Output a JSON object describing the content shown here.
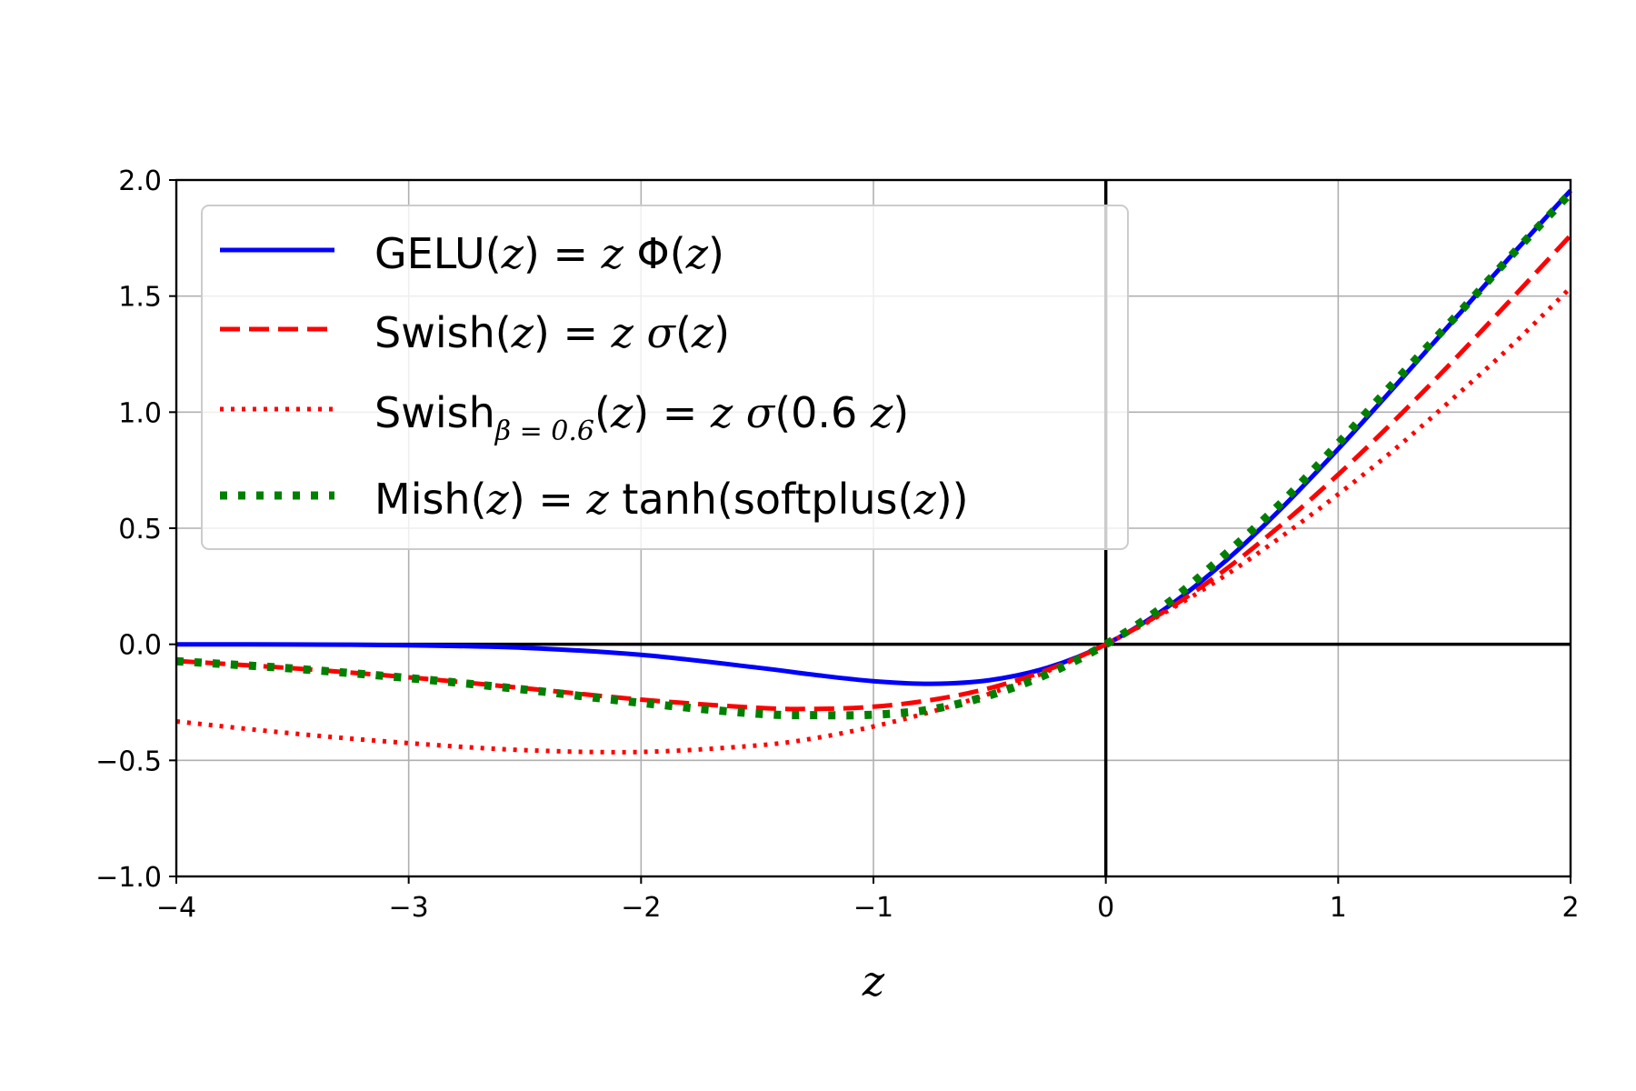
{
  "chart_data": {
    "type": "line",
    "xlabel": "z",
    "ylabel": "",
    "xlim": [
      -4,
      2
    ],
    "ylim": [
      -1.0,
      2.0
    ],
    "grid": true,
    "legend_position": "upper-left",
    "xticks": [
      -4,
      -3,
      -2,
      -1,
      0,
      1,
      2
    ],
    "xtick_labels": [
      "−4",
      "−3",
      "−2",
      "−1",
      "0",
      "1",
      "2"
    ],
    "yticks": [
      -1.0,
      -0.5,
      0.0,
      0.5,
      1.0,
      1.5,
      2.0
    ],
    "ytick_labels": [
      "−1.0",
      "−0.5",
      "0.0",
      "0.5",
      "1.0",
      "1.5",
      "2.0"
    ],
    "x": [
      -4,
      -3.5,
      -3,
      -2.5,
      -2,
      -1.5,
      -1.25,
      -1,
      -0.75,
      -0.5,
      -0.25,
      0,
      0.25,
      0.5,
      0.75,
      1,
      1.25,
      1.5,
      1.75,
      2
    ],
    "series": [
      {
        "name": "GELU(z) = z Φ(z)",
        "style": "solid",
        "color": "#0000ff",
        "values": [
          -0.0001,
          -0.0008,
          -0.004,
          -0.0155,
          -0.0455,
          -0.1002,
          -0.132,
          -0.1587,
          -0.17,
          -0.1543,
          -0.1003,
          0,
          0.1497,
          0.3457,
          0.58,
          0.8413,
          1.118,
          1.3998,
          1.68,
          1.9545
        ]
      },
      {
        "name": "Swish(z) = z σ(z)",
        "style": "dashed",
        "color": "#ff0000",
        "values": [
          -0.0719,
          -0.103,
          -0.1423,
          -0.1894,
          -0.2384,
          -0.2736,
          -0.2781,
          -0.2689,
          -0.2398,
          -0.1888,
          -0.1099,
          0,
          0.1401,
          0.3112,
          0.5102,
          0.7311,
          0.9719,
          1.2264,
          1.4922,
          1.7616
        ]
      },
      {
        "name": "Swish_{β = 0.6}(z) = z σ(0.6 z)",
        "style": "dotted",
        "color": "#ff0000",
        "values": [
          -0.3322,
          -0.3838,
          -0.4259,
          -0.456,
          -0.4638,
          -0.4358,
          -0.4041,
          -0.3541,
          -0.2903,
          -0.2128,
          -0.1156,
          0,
          0.1344,
          0.2872,
          0.4597,
          0.6459,
          0.8459,
          1.0642,
          1.2904,
          1.5362
        ]
      },
      {
        "name": "Mish(z) = z tanh(softplus(z))",
        "style": "dotted-thick",
        "color": "#008000",
        "values": [
          -0.0727,
          -0.1045,
          -0.1456,
          -0.195,
          -0.2525,
          -0.299,
          -0.3054,
          -0.3034,
          -0.28,
          -0.22,
          -0.1274,
          0,
          0.1648,
          0.3752,
          0.604,
          0.8651,
          1.138,
          1.406,
          1.68,
          1.944
        ]
      }
    ]
  },
  "legend": {
    "gelu": {
      "lhs": "GELU(",
      "var": "z",
      "rhs": ") = ",
      "v2": "z",
      "func": " Φ(",
      "v3": "z",
      "close": ")"
    },
    "swish": {
      "lhs": "Swish(",
      "var": "z",
      "rhs": ") = ",
      "v2": "z",
      "func": " σ",
      "open": "(",
      "v3": "z",
      "close": ")"
    },
    "swish06": {
      "lhs": "Swish",
      "sub": "β = 0.6",
      "open": "(",
      "var": "z",
      "rhs": ") = ",
      "v2": "z",
      "func": " σ",
      "arg": "(0.6 ",
      "v3": "z",
      "close": ")"
    },
    "mish": {
      "lhs": "Mish(",
      "var": "z",
      "rhs": ") = ",
      "v2": "z",
      "func": " tanh(softplus(",
      "v3": "z",
      "close": "))"
    }
  }
}
